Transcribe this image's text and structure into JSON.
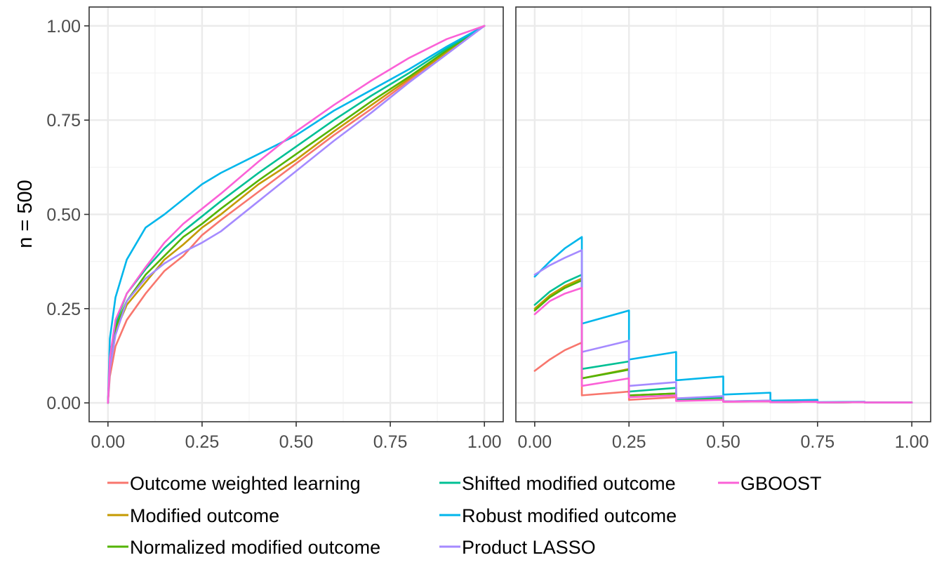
{
  "chart_data": {
    "type": "line",
    "row_strip_label": "n = 500",
    "legend_position": "bottom",
    "grid": true,
    "series_styles": [
      {
        "name": "Outcome weighted learning",
        "color": "#F8766D"
      },
      {
        "name": "Modified outcome",
        "color": "#C49A00"
      },
      {
        "name": "Normalized modified outcome",
        "color": "#53B400"
      },
      {
        "name": "Shifted modified outcome",
        "color": "#00C094"
      },
      {
        "name": "Robust modified outcome",
        "color": "#00B6EB"
      },
      {
        "name": "Product LASSO",
        "color": "#A58AFF"
      },
      {
        "name": "GBOOST",
        "color": "#FB61D7"
      }
    ],
    "panels": [
      {
        "id": "left",
        "xlim": [
          -0.05,
          1.05
        ],
        "ylim": [
          -0.05,
          1.05
        ],
        "x_ticks": [
          0,
          0.25,
          0.5,
          0.75,
          1
        ],
        "x_tick_labels": [
          "0.00",
          "0.25",
          "0.50",
          "0.75",
          "1.00"
        ],
        "y_ticks": [
          0,
          0.25,
          0.5,
          0.75,
          1
        ],
        "y_tick_labels": [
          "0.00",
          "0.25",
          "0.50",
          "0.75",
          "1.00"
        ],
        "series": [
          {
            "name": "Outcome weighted learning",
            "x": [
              0,
              0.005,
              0.02,
              0.05,
              0.1,
              0.15,
              0.2,
              0.25,
              0.3,
              0.4,
              0.5,
              0.6,
              0.7,
              0.8,
              0.9,
              1
            ],
            "y": [
              0,
              0.07,
              0.15,
              0.22,
              0.29,
              0.35,
              0.39,
              0.445,
              0.485,
              0.56,
              0.635,
              0.71,
              0.78,
              0.855,
              0.93,
              1
            ]
          },
          {
            "name": "Modified outcome",
            "x": [
              0,
              0.005,
              0.02,
              0.05,
              0.1,
              0.15,
              0.2,
              0.25,
              0.3,
              0.4,
              0.5,
              0.6,
              0.7,
              0.8,
              0.9,
              1
            ],
            "y": [
              0,
              0.1,
              0.19,
              0.26,
              0.32,
              0.38,
              0.42,
              0.465,
              0.5,
              0.58,
              0.645,
              0.72,
              0.79,
              0.86,
              0.93,
              1
            ]
          },
          {
            "name": "Normalized modified outcome",
            "x": [
              0,
              0.005,
              0.02,
              0.05,
              0.1,
              0.15,
              0.2,
              0.25,
              0.3,
              0.4,
              0.5,
              0.6,
              0.7,
              0.8,
              0.9,
              1
            ],
            "y": [
              0,
              0.11,
              0.2,
              0.27,
              0.34,
              0.39,
              0.44,
              0.475,
              0.515,
              0.59,
              0.66,
              0.73,
              0.8,
              0.865,
              0.935,
              1
            ]
          },
          {
            "name": "Shifted modified outcome",
            "x": [
              0,
              0.005,
              0.02,
              0.05,
              0.1,
              0.15,
              0.2,
              0.25,
              0.3,
              0.4,
              0.5,
              0.6,
              0.7,
              0.8,
              0.9,
              1
            ],
            "y": [
              0,
              0.12,
              0.21,
              0.29,
              0.355,
              0.41,
              0.455,
              0.495,
              0.535,
              0.61,
              0.68,
              0.75,
              0.815,
              0.875,
              0.94,
              1
            ]
          },
          {
            "name": "Robust modified outcome",
            "x": [
              0,
              0.005,
              0.02,
              0.05,
              0.1,
              0.15,
              0.2,
              0.25,
              0.3,
              0.4,
              0.5,
              0.6,
              0.7,
              0.8,
              0.9,
              1
            ],
            "y": [
              0,
              0.17,
              0.28,
              0.38,
              0.465,
              0.5,
              0.54,
              0.58,
              0.61,
              0.66,
              0.71,
              0.775,
              0.83,
              0.885,
              0.945,
              1
            ]
          },
          {
            "name": "Product LASSO",
            "x": [
              0,
              0.005,
              0.02,
              0.05,
              0.1,
              0.15,
              0.2,
              0.25,
              0.3,
              0.4,
              0.5,
              0.6,
              0.7,
              0.8,
              0.9,
              1
            ],
            "y": [
              0,
              0.09,
              0.18,
              0.27,
              0.33,
              0.37,
              0.4,
              0.425,
              0.455,
              0.535,
              0.615,
              0.695,
              0.77,
              0.85,
              0.925,
              1
            ]
          },
          {
            "name": "GBOOST",
            "x": [
              0,
              0.005,
              0.02,
              0.05,
              0.1,
              0.15,
              0.2,
              0.25,
              0.3,
              0.4,
              0.5,
              0.6,
              0.7,
              0.8,
              0.9,
              1
            ],
            "y": [
              0,
              0.12,
              0.22,
              0.29,
              0.36,
              0.425,
              0.475,
              0.515,
              0.555,
              0.64,
              0.72,
              0.79,
              0.855,
              0.915,
              0.965,
              1
            ]
          }
        ]
      },
      {
        "id": "right",
        "xlim": [
          -0.05,
          1.05
        ],
        "ylim": [
          -0.05,
          1.05
        ],
        "x_ticks": [
          0,
          0.25,
          0.5,
          0.75,
          1
        ],
        "x_tick_labels": [
          "0.00",
          "0.25",
          "0.50",
          "0.75",
          "1.00"
        ],
        "y_ticks": [
          0,
          0.25,
          0.5,
          0.75,
          1
        ],
        "y_tick_labels": [],
        "series": [
          {
            "name": "Outcome weighted learning",
            "x": [
              0,
              0.04,
              0.08,
              0.125,
              0.125,
              0.25,
              0.25,
              0.375,
              0.375,
              0.5,
              0.5,
              0.625,
              0.625,
              0.75,
              0.75,
              0.875,
              0.875,
              1
            ],
            "y": [
              0.085,
              0.115,
              0.14,
              0.16,
              0.02,
              0.03,
              0.008,
              0.015,
              0.006,
              0.008,
              0.003,
              0.004,
              0.002,
              0.003,
              0.001,
              0.002,
              0.001,
              0.001
            ]
          },
          {
            "name": "Modified outcome",
            "x": [
              0,
              0.04,
              0.08,
              0.125,
              0.125,
              0.25,
              0.25,
              0.375,
              0.375,
              0.5,
              0.5,
              0.625,
              0.625,
              0.75,
              0.75,
              0.875,
              0.875,
              1
            ],
            "y": [
              0.25,
              0.285,
              0.31,
              0.33,
              0.065,
              0.09,
              0.02,
              0.025,
              0.007,
              0.01,
              0.004,
              0.005,
              0.002,
              0.003,
              0.001,
              0.002,
              0.001,
              0.001
            ]
          },
          {
            "name": "Normalized modified outcome",
            "x": [
              0,
              0.04,
              0.08,
              0.125,
              0.125,
              0.25,
              0.25,
              0.375,
              0.375,
              0.5,
              0.5,
              0.625,
              0.625,
              0.75,
              0.75,
              0.875,
              0.875,
              1
            ],
            "y": [
              0.245,
              0.28,
              0.305,
              0.325,
              0.065,
              0.088,
              0.02,
              0.025,
              0.007,
              0.01,
              0.004,
              0.005,
              0.002,
              0.003,
              0.001,
              0.002,
              0.001,
              0.001
            ]
          },
          {
            "name": "Shifted modified outcome",
            "x": [
              0,
              0.04,
              0.08,
              0.125,
              0.125,
              0.25,
              0.25,
              0.375,
              0.375,
              0.5,
              0.5,
              0.625,
              0.625,
              0.75,
              0.75,
              0.875,
              0.875,
              1
            ],
            "y": [
              0.26,
              0.295,
              0.32,
              0.34,
              0.09,
              0.11,
              0.03,
              0.04,
              0.01,
              0.015,
              0.004,
              0.006,
              0.002,
              0.003,
              0.001,
              0.002,
              0.001,
              0.001
            ]
          },
          {
            "name": "Robust modified outcome",
            "x": [
              0,
              0.04,
              0.08,
              0.125,
              0.125,
              0.25,
              0.25,
              0.375,
              0.375,
              0.5,
              0.5,
              0.625,
              0.625,
              0.75,
              0.75,
              0.875,
              0.875,
              1
            ],
            "y": [
              0.335,
              0.375,
              0.41,
              0.44,
              0.21,
              0.245,
              0.115,
              0.135,
              0.06,
              0.07,
              0.022,
              0.027,
              0.006,
              0.008,
              0.002,
              0.003,
              0.001,
              0.001
            ]
          },
          {
            "name": "Product LASSO",
            "x": [
              0,
              0.04,
              0.08,
              0.125,
              0.125,
              0.25,
              0.25,
              0.375,
              0.375,
              0.5,
              0.5,
              0.625,
              0.625,
              0.75,
              0.75,
              0.875,
              0.875,
              1
            ],
            "y": [
              0.34,
              0.365,
              0.385,
              0.405,
              0.135,
              0.165,
              0.045,
              0.055,
              0.012,
              0.018,
              0.004,
              0.006,
              0.002,
              0.003,
              0.001,
              0.002,
              0.001,
              0.001
            ]
          },
          {
            "name": "GBOOST",
            "x": [
              0,
              0.04,
              0.08,
              0.125,
              0.125,
              0.25,
              0.25,
              0.375,
              0.375,
              0.5,
              0.5,
              0.625,
              0.625,
              0.75,
              0.75,
              0.875,
              0.875,
              1
            ],
            "y": [
              0.235,
              0.27,
              0.29,
              0.305,
              0.045,
              0.065,
              0.015,
              0.02,
              0.005,
              0.008,
              0.003,
              0.004,
              0.002,
              0.003,
              0.001,
              0.002,
              0.001,
              0.001
            ]
          }
        ]
      }
    ]
  }
}
